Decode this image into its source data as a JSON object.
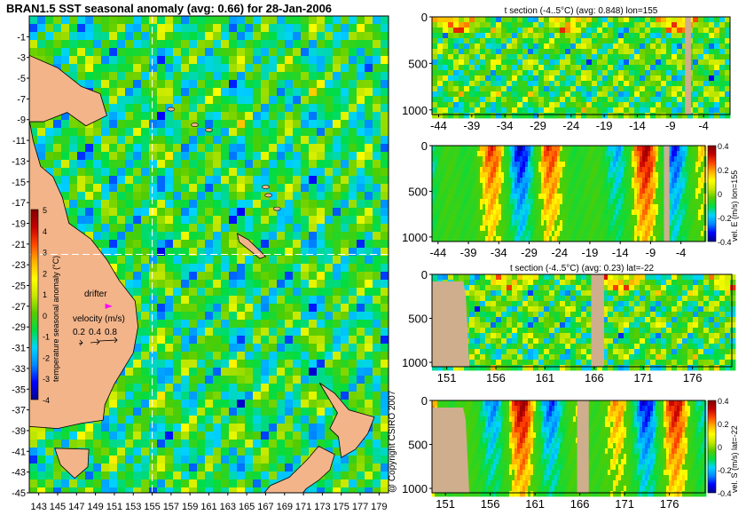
{
  "title": "BRAN1.5 SST seasonal anomaly (avg: 0.66) for 28-Jan-2006",
  "copyright": "@ Copyright CSIRO 2007",
  "colors": {
    "land": "#cfae8e",
    "map_land": "#f3b48a",
    "dashed_line": "#ffffff",
    "drifter": "#ff00ff",
    "colormap": [
      "#00008b",
      "#0000ff",
      "#0088ff",
      "#00d4ff",
      "#00dd44",
      "#55cc00",
      "#c6e800",
      "#ffff00",
      "#ffb000",
      "#ff4500",
      "#c40000",
      "#800000"
    ]
  },
  "icons": [
    "drifter-marker-icon",
    "velocity-arrow-icon"
  ],
  "chart_data": [
    {
      "type": "heatmap",
      "name": "sst-anomaly-map",
      "title": "",
      "xlabel": "",
      "ylabel": "",
      "x_ticks": [
        "143",
        "145",
        "147",
        "149",
        "151",
        "153",
        "155",
        "157",
        "159",
        "161",
        "163",
        "165",
        "167",
        "169",
        "171",
        "173",
        "175",
        "177",
        "179"
      ],
      "y_ticks": [
        "-1",
        "-3",
        "-5",
        "-7",
        "-9",
        "-11",
        "-13",
        "-15",
        "-17",
        "-19",
        "-21",
        "-23",
        "-25",
        "-27",
        "-29",
        "-31",
        "-33",
        "-35",
        "-37",
        "-39",
        "-41",
        "-43",
        "-45"
      ],
      "xlim": [
        142,
        180
      ],
      "ylim": [
        -45,
        1
      ],
      "section_lon": 155,
      "section_lat": -22,
      "drifter": {
        "label": "drifter",
        "lon": 150.5,
        "lat": -27
      },
      "velocity_legend": {
        "label": "velocity (m/s)",
        "ticks": [
          "0.2",
          "0.4",
          "0.8"
        ]
      },
      "colorbar": {
        "label": "temperature seasonal anomaly (°C)",
        "range": [
          -4,
          5
        ],
        "ticks": [
          "5",
          "4",
          "3",
          "2",
          "1",
          "0",
          "-1",
          "-2",
          "-3",
          "-4"
        ]
      }
    },
    {
      "type": "heatmap",
      "name": "t-section-lon155",
      "title": "t section (-4..5°C) (avg: 0.848) lon=155",
      "x_ticks": [
        "-44",
        "-39",
        "-34",
        "-29",
        "-24",
        "-19",
        "-14",
        "-9",
        "-4"
      ],
      "y_ticks": [
        "0",
        "500",
        "1000"
      ],
      "xlim": [
        -45,
        0
      ],
      "ylim": [
        1050,
        0
      ],
      "land_intervals": [
        [
          -6.8,
          -5.9
        ]
      ]
    },
    {
      "type": "heatmap",
      "name": "vel-e-section-lon155",
      "title": "",
      "x_ticks": [
        "-44",
        "-39",
        "-34",
        "-29",
        "-24",
        "-19",
        "-14",
        "-9",
        "-4"
      ],
      "y_ticks": [
        "0",
        "500",
        "1000"
      ],
      "xlim": [
        -45,
        0
      ],
      "ylim": [
        1050,
        0
      ],
      "land_intervals": [
        [
          -6.8,
          -5.9
        ]
      ],
      "colorbar": {
        "label": "vel. E (m/s) lon=155",
        "range": [
          -0.4,
          0.4
        ],
        "ticks": [
          "0.4",
          "0.2",
          "0",
          "-0.2",
          "-0.4"
        ]
      }
    },
    {
      "type": "heatmap",
      "name": "t-section-lat-22",
      "title": "t section (-4..5°C) (avg: 0.23) lat=-22",
      "x_ticks": [
        "151",
        "156",
        "161",
        "166",
        "171",
        "176"
      ],
      "y_ticks": [
        "0",
        "500",
        "1000"
      ],
      "xlim": [
        149.5,
        180
      ],
      "ylim": [
        1050,
        0
      ],
      "land_intervals": [
        [
          165.7,
          167
        ]
      ]
    },
    {
      "type": "heatmap",
      "name": "vel-s-section-lat-22",
      "title": "",
      "x_ticks": [
        "151",
        "156",
        "161",
        "166",
        "171",
        "176"
      ],
      "y_ticks": [
        "0",
        "500",
        "1000"
      ],
      "xlim": [
        149.5,
        180
      ],
      "ylim": [
        1050,
        0
      ],
      "land_intervals": [
        [
          165.7,
          167
        ]
      ],
      "colorbar": {
        "label": "vel. S (m/s) lat=-22",
        "range": [
          -0.4,
          0.4
        ],
        "ticks": [
          "0.4",
          "0.2",
          "0",
          "-0.2",
          "-0.4"
        ]
      }
    }
  ]
}
